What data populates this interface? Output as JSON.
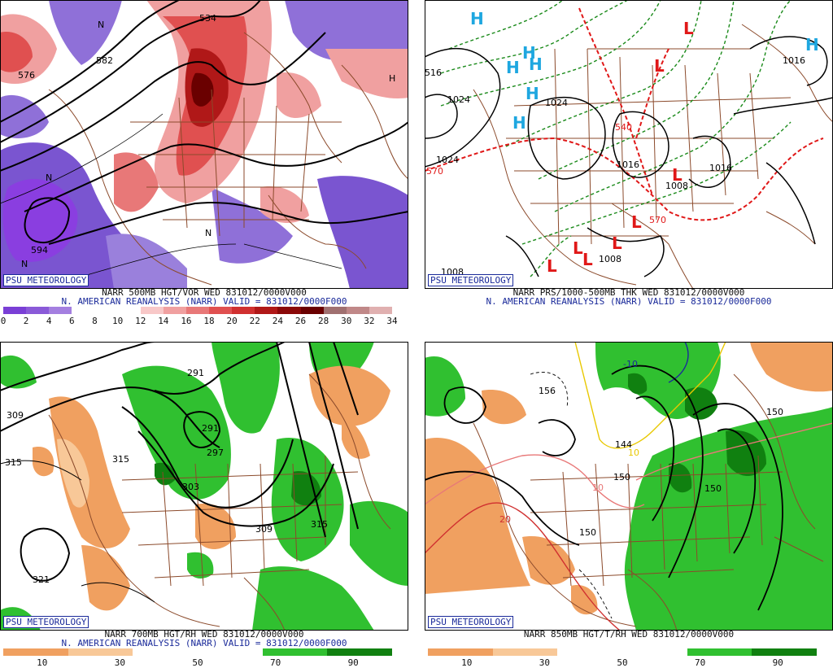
{
  "badge": "PSU METEOROLOGY",
  "panels": [
    {
      "id": "p500",
      "caption": "NARR 500MB HGT/VOR WED 831012/0000V000",
      "subcaption": "N. AMERICAN REANALYSIS (NARR) VALID = 831012/0000F000",
      "colorbar": {
        "ticks": [
          "0",
          "2",
          "4",
          "6",
          "8",
          "10",
          "12",
          "14",
          "16",
          "18",
          "20",
          "22",
          "24",
          "26",
          "28",
          "30",
          "32",
          "34"
        ],
        "colors": [
          "#7a3fd6",
          "#8a5ad8",
          "#a47fe0",
          "#ffffff",
          "#ffffff",
          "#ffffff",
          "#f8c8c8",
          "#f0a0a0",
          "#e87878",
          "#e05050",
          "#d03030",
          "#b01818",
          "#8a0808",
          "#6a0000",
          "#a07070",
          "#c08888",
          "#e0b0b0"
        ]
      },
      "labels": [
        "534",
        "582",
        "576",
        "594",
        "N",
        "H"
      ]
    },
    {
      "id": "pprs",
      "caption": "NARR PRS/1000-500MB THK WED 831012/0000V000",
      "subcaption": "N. AMERICAN REANALYSIS (NARR) VALID = 831012/0000F000",
      "labels": [
        "1024",
        "1024",
        "1024",
        "1016",
        "1016",
        "1016",
        "1008",
        "1008",
        "1008",
        "540",
        "570",
        "570",
        "516"
      ],
      "highs": [
        "H",
        "H",
        "H",
        "H",
        "H",
        "H",
        "H"
      ],
      "lows": [
        "L",
        "L",
        "L",
        "L",
        "L",
        "L",
        "L",
        "L"
      ]
    },
    {
      "id": "p700",
      "caption": "NARR 700MB HGT/RH WED 831012/0000V000",
      "subcaption": "N. AMERICAN REANALYSIS (NARR) VALID = 831012/0000F000",
      "colorbar": {
        "ticks": [
          "10",
          "30",
          "50",
          "70",
          "90"
        ],
        "colors": [
          "#f0a060",
          "#f8c898",
          "#ffffff",
          "#ffffff",
          "#30c030",
          "#108010"
        ]
      },
      "labels": [
        "309",
        "315",
        "315",
        "291",
        "291",
        "297",
        "303",
        "309",
        "315",
        "321"
      ]
    },
    {
      "id": "p850",
      "caption": "NARR 850MB HGT/T/RH WED 831012/0000V000",
      "subcaption": "",
      "colorbar": {
        "ticks": [
          "10",
          "30",
          "50",
          "70",
          "90"
        ],
        "colors": [
          "#f0a060",
          "#f8c898",
          "#ffffff",
          "#ffffff",
          "#30c030",
          "#108010"
        ]
      },
      "labels": [
        "150",
        "150",
        "150",
        "144",
        "156",
        "150",
        "-10",
        "10",
        "20",
        "10"
      ]
    }
  ],
  "colors": {
    "border": "#000000",
    "state_lines": "#8b4a2b",
    "height_contours": "#000000",
    "thickness_contours": "#1a8a1a",
    "high_marker": "#1ea7e0",
    "low_marker": "#e01818",
    "caption_blue": "#1a2a9a"
  }
}
